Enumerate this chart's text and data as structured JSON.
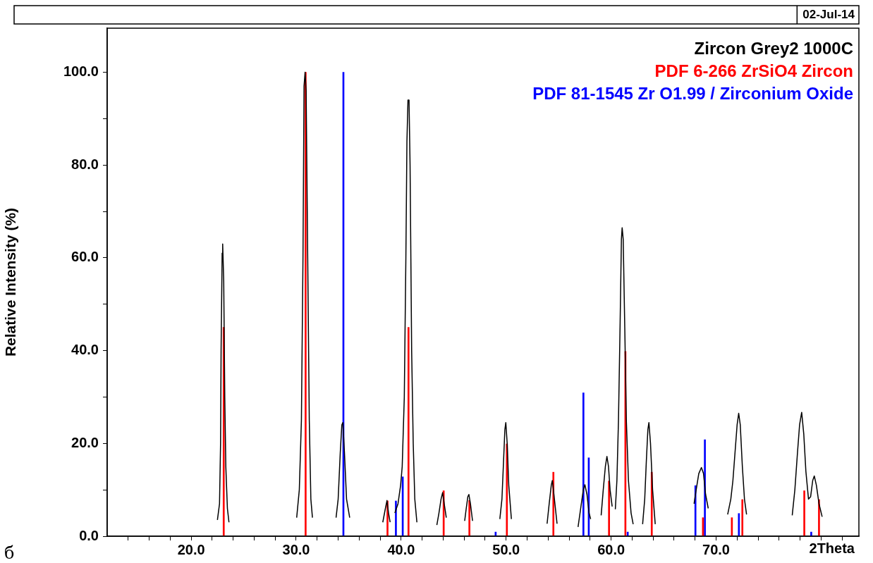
{
  "chart_data": {
    "type": "line",
    "ylabel": "Relative Intensity (%)",
    "xlabel": "2Theta",
    "annotations": [
      "02-Jul-14",
      "б"
    ],
    "xlim": [
      12,
      83.6
    ],
    "ylim": [
      0,
      109.5
    ],
    "xticks": [
      {
        "value": 14,
        "label": null
      },
      {
        "value": 16,
        "label": null
      },
      {
        "value": 18,
        "label": null
      },
      {
        "value": 20,
        "label": "20.0"
      },
      {
        "value": 22,
        "label": null
      },
      {
        "value": 24,
        "label": null
      },
      {
        "value": 26,
        "label": null
      },
      {
        "value": 28,
        "label": null
      },
      {
        "value": 30,
        "label": "30.0"
      },
      {
        "value": 32,
        "label": null
      },
      {
        "value": 34,
        "label": null
      },
      {
        "value": 36,
        "label": null
      },
      {
        "value": 38,
        "label": null
      },
      {
        "value": 40,
        "label": "40.0"
      },
      {
        "value": 42,
        "label": null
      },
      {
        "value": 44,
        "label": null
      },
      {
        "value": 46,
        "label": null
      },
      {
        "value": 48,
        "label": null
      },
      {
        "value": 50,
        "label": "50.0"
      },
      {
        "value": 52,
        "label": null
      },
      {
        "value": 54,
        "label": null
      },
      {
        "value": 56,
        "label": null
      },
      {
        "value": 58,
        "label": null
      },
      {
        "value": 60,
        "label": "60.0"
      },
      {
        "value": 62,
        "label": null
      },
      {
        "value": 64,
        "label": null
      },
      {
        "value": 66,
        "label": null
      },
      {
        "value": 68,
        "label": null
      },
      {
        "value": 70,
        "label": "70.0"
      },
      {
        "value": 72,
        "label": null
      },
      {
        "value": 74,
        "label": null
      },
      {
        "value": 76,
        "label": null
      },
      {
        "value": 78,
        "label": null
      },
      {
        "value": 80,
        "label": null
      },
      {
        "value": 82,
        "label": null
      }
    ],
    "yticks": [
      {
        "value": 0,
        "label": "0.0"
      },
      {
        "value": 10,
        "label": null
      },
      {
        "value": 20,
        "label": "20.0"
      },
      {
        "value": 30,
        "label": null
      },
      {
        "value": 40,
        "label": "40.0"
      },
      {
        "value": 50,
        "label": null
      },
      {
        "value": 60,
        "label": "60.0"
      },
      {
        "value": 70,
        "label": null
      },
      {
        "value": 80,
        "label": "80.0"
      },
      {
        "value": 90,
        "label": null
      },
      {
        "value": 100,
        "label": "100.0"
      }
    ],
    "legend": "top right",
    "marker": "none",
    "series": [
      {
        "name": "Zircon Grey2 1000C",
        "color": "#000000",
        "x": [
          22.5,
          22.7,
          22.8,
          22.85,
          22.95,
          23.0,
          23.1,
          23.2,
          23.3,
          23.45,
          23.6,
          24.0,
          30.05,
          30.3,
          30.5,
          30.65,
          30.75,
          30.85,
          30.95,
          31.1,
          31.25,
          31.4,
          31.55,
          32.0,
          33.8,
          34.0,
          34.2,
          34.35,
          34.45,
          34.6,
          34.8,
          35.1,
          36.0,
          38.25,
          38.5,
          38.65,
          38.8,
          38.95,
          39.1,
          39.4,
          39.7,
          39.95,
          40.1,
          40.3,
          40.45,
          40.55,
          40.65,
          40.75,
          40.85,
          41.0,
          41.15,
          41.3,
          41.5,
          42.0,
          43.4,
          43.6,
          43.8,
          43.95,
          44.1,
          44.3,
          45.0,
          46.05,
          46.2,
          46.35,
          46.45,
          46.6,
          46.8,
          47.5,
          49.4,
          49.6,
          49.75,
          49.88,
          49.97,
          50.1,
          50.25,
          50.5,
          51.0,
          53.9,
          54.1,
          54.3,
          54.4,
          54.55,
          54.85,
          55.5,
          56.85,
          57.1,
          57.35,
          57.5,
          57.7,
          57.9,
          58.05,
          58.5,
          59.05,
          59.25,
          59.45,
          59.6,
          59.75,
          59.9,
          60.1,
          60.25,
          60.4,
          60.55,
          60.7,
          60.85,
          60.98,
          61.05,
          61.15,
          61.3,
          61.45,
          61.65,
          61.9,
          62.1,
          62.5,
          63.0,
          63.2,
          63.35,
          63.5,
          63.6,
          63.75,
          63.95,
          64.2,
          65.0,
          67.9,
          68.1,
          68.35,
          68.6,
          68.8,
          69.0,
          69.25,
          70.0,
          71.1,
          71.4,
          71.6,
          71.8,
          72.0,
          72.15,
          72.3,
          72.5,
          72.7,
          72.9,
          73.5,
          77.25,
          77.5,
          77.75,
          77.95,
          78.15,
          78.35,
          78.55,
          78.8,
          79.0,
          79.2,
          79.35,
          79.55,
          79.8,
          80.1
        ],
        "values": [
          3.5,
          7,
          20,
          40,
          61,
          63,
          55,
          30,
          15,
          6,
          3,
          null,
          4,
          10,
          25,
          60,
          97,
          100,
          96,
          60,
          25,
          8,
          4,
          null,
          4,
          8,
          18,
          24,
          24.5,
          18,
          8,
          4,
          null,
          3,
          6,
          7.7,
          5,
          3,
          null,
          5,
          7,
          11,
          15,
          30,
          60,
          85,
          94,
          94,
          80,
          40,
          20,
          8,
          3,
          null,
          2.4,
          5,
          8,
          9.4,
          7,
          4,
          null,
          3.3,
          6,
          8.5,
          9,
          7,
          3.3,
          null,
          3.7,
          8,
          16,
          23,
          24.5,
          20,
          11,
          3.7,
          null,
          2.7,
          7,
          11,
          12,
          9,
          2.7,
          null,
          2,
          6,
          10,
          11.1,
          9,
          5,
          3.7,
          null,
          4.5,
          10,
          15,
          17.2,
          15,
          10,
          6.4,
          null,
          5.8,
          12,
          25,
          45,
          64,
          66.5,
          64,
          45,
          25,
          12,
          5,
          2.6,
          null,
          2.6,
          8,
          16,
          23,
          24.5,
          20,
          10,
          2.6,
          null,
          7,
          10,
          13.5,
          14.8,
          13.5,
          9,
          6,
          null,
          4.7,
          8,
          12,
          18,
          24,
          26.5,
          24,
          15,
          8,
          4.7,
          null,
          4.5,
          10,
          18,
          24,
          26.7,
          22,
          14,
          8,
          8.5,
          12,
          13,
          11,
          7,
          4.2
        ]
      },
      {
        "name": "PDF 6-266 ZrSiO4 Zircon",
        "type": "bar",
        "color": "#ff0000",
        "x": [
          23.1,
          30.9,
          38.7,
          40.7,
          44.05,
          46.5,
          50.07,
          54.5,
          59.8,
          61.36,
          63.87,
          68.75,
          71.5,
          72.5,
          78.4,
          79.8
        ],
        "values": [
          45,
          100,
          7.6,
          45,
          9.8,
          7.7,
          19.9,
          13.8,
          11.9,
          39.8,
          13.8,
          4,
          4,
          7.9,
          9.8,
          7.9
        ]
      },
      {
        "name": "PDF 81-1545 Zr O1.99 / Zirconium Oxide",
        "type": "bar",
        "color": "#0000ff",
        "x": [
          34.5,
          39.5,
          40.15,
          49.0,
          57.36,
          57.87,
          61.58,
          68.03,
          68.93,
          72.17,
          79.06
        ],
        "values": [
          100,
          7.6,
          12.8,
          0.9,
          30.9,
          16.9,
          0.9,
          10.9,
          20.8,
          4.9,
          0.9
        ]
      }
    ]
  }
}
